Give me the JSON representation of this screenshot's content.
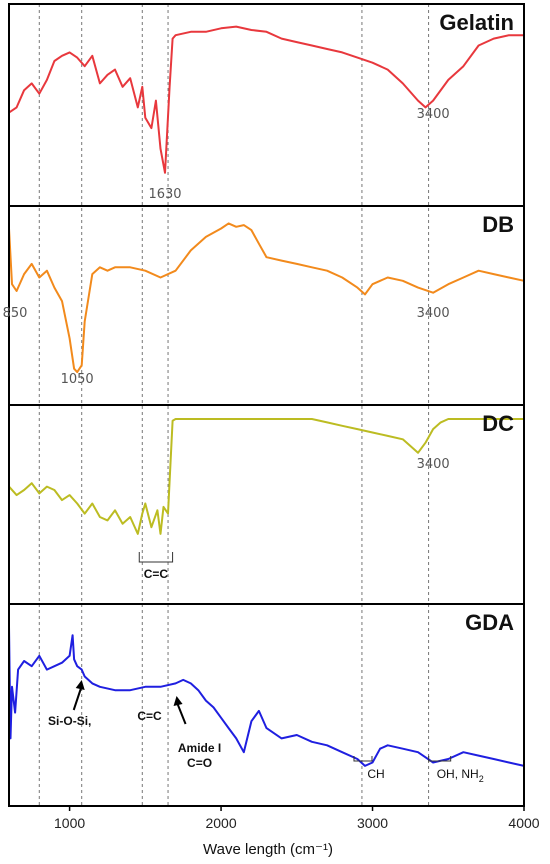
{
  "chart_data": {
    "type": "line",
    "xlabel": "Wave length (cm⁻¹)",
    "xlim": [
      600,
      4000
    ],
    "x_ticks": [
      "1000",
      "2000",
      "3000",
      "4000"
    ],
    "x_tick_values": [
      1000,
      2000,
      3000,
      4000
    ],
    "grid": "vertical dotted reference lines",
    "reference_lines": [
      800,
      1080,
      1480,
      1650,
      2930,
      3370
    ],
    "panels": [
      {
        "name": "Gelatin",
        "color": "#e8383d",
        "x": [
          600,
          650,
          700,
          750,
          800,
          850,
          900,
          950,
          1000,
          1050,
          1100,
          1150,
          1200,
          1250,
          1300,
          1350,
          1400,
          1450,
          1480,
          1500,
          1540,
          1570,
          1600,
          1630,
          1660,
          1680,
          1700,
          1800,
          1900,
          2000,
          2100,
          2200,
          2300,
          2400,
          2500,
          2600,
          2700,
          2800,
          2900,
          3000,
          3100,
          3200,
          3300,
          3350,
          3400,
          3500,
          3600,
          3700,
          3800,
          3900,
          4000
        ],
        "y": [
          45,
          48,
          58,
          62,
          56,
          64,
          75,
          78,
          80,
          77,
          72,
          78,
          62,
          67,
          70,
          60,
          65,
          48,
          60,
          42,
          36,
          52,
          24,
          10,
          60,
          88,
          90,
          92,
          92,
          94,
          95,
          93,
          92,
          88,
          86,
          84,
          82,
          80,
          77,
          74,
          70,
          62,
          52,
          48,
          52,
          64,
          72,
          84,
          88,
          90,
          90
        ],
        "labels": [
          {
            "text": "1630",
            "x": 1630
          },
          {
            "text": "3400",
            "x": 3400
          }
        ]
      },
      {
        "name": "DB",
        "color": "#f28a1c",
        "x": [
          600,
          620,
          650,
          700,
          750,
          800,
          850,
          900,
          950,
          1000,
          1030,
          1050,
          1080,
          1100,
          1150,
          1200,
          1250,
          1300,
          1400,
          1500,
          1600,
          1700,
          1800,
          1900,
          2000,
          2050,
          2100,
          2150,
          2200,
          2250,
          2300,
          2400,
          2500,
          2600,
          2700,
          2800,
          2900,
          2950,
          3000,
          3100,
          3200,
          3300,
          3400,
          3500,
          3600,
          3700,
          3800,
          3900,
          4000
        ],
        "y": [
          95,
          62,
          58,
          68,
          74,
          66,
          70,
          60,
          52,
          30,
          12,
          10,
          14,
          40,
          68,
          72,
          70,
          72,
          72,
          70,
          66,
          70,
          82,
          90,
          95,
          98,
          96,
          97,
          94,
          86,
          78,
          76,
          74,
          72,
          70,
          66,
          60,
          56,
          62,
          66,
          64,
          60,
          57,
          62,
          66,
          70,
          68,
          66,
          64
        ],
        "labels": [
          {
            "text": "850",
            "x": 640
          },
          {
            "text": "1050",
            "x": 1050
          },
          {
            "text": "3400",
            "x": 3400
          }
        ]
      },
      {
        "name": "DC",
        "color": "#bcbc22",
        "x": [
          600,
          650,
          700,
          750,
          800,
          850,
          900,
          950,
          1000,
          1050,
          1100,
          1150,
          1200,
          1250,
          1300,
          1350,
          1400,
          1450,
          1480,
          1500,
          1540,
          1580,
          1600,
          1620,
          1650,
          1680,
          1700,
          1800,
          1900,
          2000,
          2100,
          2200,
          2300,
          2400,
          2500,
          2600,
          2700,
          2800,
          2900,
          3000,
          3100,
          3200,
          3250,
          3300,
          3350,
          3400,
          3450,
          3500,
          3600,
          3700,
          3800,
          3900,
          4000
        ],
        "y": [
          60,
          55,
          58,
          62,
          56,
          60,
          58,
          52,
          55,
          50,
          44,
          50,
          42,
          40,
          46,
          38,
          42,
          32,
          44,
          50,
          36,
          46,
          32,
          48,
          44,
          99,
          100,
          100,
          100,
          100,
          100,
          100,
          100,
          100,
          100,
          100,
          98,
          96,
          94,
          92,
          90,
          88,
          84,
          80,
          86,
          94,
          98,
          100,
          100,
          100,
          100,
          100,
          100
        ],
        "labels": [
          {
            "text": "3400",
            "x": 3400
          }
        ],
        "bracket": {
          "text": "C=C",
          "x_start": 1460,
          "x_end": 1680
        }
      },
      {
        "name": "GDA",
        "color": "#1f1fe0",
        "x": [
          600,
          610,
          620,
          640,
          660,
          700,
          750,
          800,
          850,
          900,
          950,
          1000,
          1020,
          1030,
          1050,
          1080,
          1100,
          1150,
          1200,
          1300,
          1400,
          1500,
          1600,
          1700,
          1750,
          1800,
          1850,
          1900,
          1950,
          2000,
          2050,
          2100,
          2150,
          2200,
          2250,
          2300,
          2400,
          2500,
          2600,
          2700,
          2800,
          2900,
          2950,
          3000,
          3050,
          3100,
          3200,
          3300,
          3400,
          3500,
          3600,
          3700,
          3800,
          3900,
          4000
        ],
        "y": [
          95,
          30,
          60,
          45,
          70,
          75,
          72,
          78,
          70,
          72,
          74,
          78,
          90,
          76,
          72,
          70,
          66,
          62,
          60,
          58,
          58,
          60,
          60,
          62,
          64,
          62,
          58,
          52,
          48,
          42,
          36,
          30,
          22,
          40,
          46,
          36,
          30,
          32,
          28,
          26,
          22,
          18,
          14,
          16,
          24,
          26,
          24,
          22,
          16,
          18,
          22,
          20,
          18,
          16,
          14
        ],
        "annotations": [
          {
            "text": "Si-O-Si,",
            "x": 1080
          },
          {
            "text": "C=C",
            "x": 1620
          },
          {
            "text": "Amide I",
            "x": 1660
          },
          {
            "text": "C=O",
            "x": 1660
          },
          {
            "text": "CH",
            "x": 2970
          },
          {
            "text": "OH, NH",
            "sub": "2",
            "x": 3450
          }
        ]
      }
    ]
  }
}
